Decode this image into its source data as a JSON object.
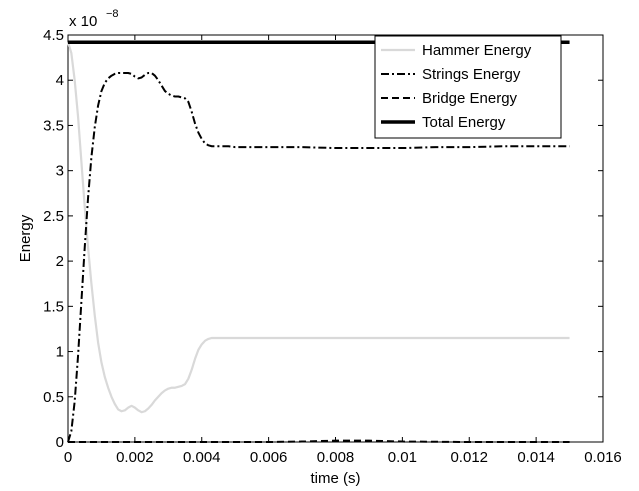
{
  "chart_data": {
    "type": "line",
    "xlabel": "time (s)",
    "ylabel": "Energy",
    "y_exponent_label": {
      "base": "x 10",
      "exp": "−8"
    },
    "xlim": [
      0,
      0.016
    ],
    "ylim": [
      0,
      4.5
    ],
    "x_ticks": [
      0,
      0.002,
      0.004,
      0.006,
      0.008,
      0.01,
      0.012,
      0.014,
      0.016
    ],
    "x_tick_labels": [
      "0",
      "0.002",
      "0.004",
      "0.006",
      "0.008",
      "0.01",
      "0.012",
      "0.014",
      "0.016"
    ],
    "y_ticks": [
      0,
      0.5,
      1,
      1.5,
      2,
      2.5,
      3,
      3.5,
      4,
      4.5
    ],
    "y_tick_labels": [
      "0",
      "0.5",
      "1",
      "1.5",
      "2",
      "2.5",
      "3",
      "3.5",
      "4",
      "4.5"
    ],
    "legend_position": "top-right",
    "series": [
      {
        "name": "Hammer Energy",
        "color": "#d9d9d9",
        "dash": "solid",
        "width": 2.2,
        "x": [
          0,
          0.0001,
          0.0002,
          0.0003,
          0.0004,
          0.0005,
          0.0006,
          0.0007,
          0.0008,
          0.0009,
          0.001,
          0.0011,
          0.0012,
          0.0013,
          0.0014,
          0.0015,
          0.0016,
          0.0017,
          0.0018,
          0.0019,
          0.002,
          0.0021,
          0.0022,
          0.0023,
          0.0024,
          0.0025,
          0.0026,
          0.0027,
          0.0028,
          0.0029,
          0.003,
          0.0031,
          0.0032,
          0.0033,
          0.0034,
          0.0035,
          0.0036,
          0.0037,
          0.0038,
          0.0039,
          0.004,
          0.0041,
          0.0042,
          0.0043,
          0.0044,
          0.0045,
          0.0046,
          0.0047,
          0.0048,
          0.005,
          0.006,
          0.008,
          0.01,
          0.012,
          0.014,
          0.015
        ],
        "values": [
          4.42,
          4.3,
          4.0,
          3.6,
          3.1,
          2.6,
          2.15,
          1.75,
          1.4,
          1.1,
          0.88,
          0.72,
          0.6,
          0.5,
          0.42,
          0.36,
          0.34,
          0.35,
          0.38,
          0.4,
          0.38,
          0.35,
          0.33,
          0.34,
          0.37,
          0.41,
          0.46,
          0.5,
          0.54,
          0.57,
          0.59,
          0.6,
          0.6,
          0.61,
          0.62,
          0.64,
          0.7,
          0.8,
          0.92,
          1.02,
          1.08,
          1.12,
          1.14,
          1.15,
          1.15,
          1.15,
          1.15,
          1.15,
          1.15,
          1.15,
          1.15,
          1.15,
          1.15,
          1.15,
          1.15,
          1.15
        ]
      },
      {
        "name": "Strings Energy",
        "color": "#000000",
        "dash": "8 3 2 3",
        "width": 2,
        "x": [
          0,
          0.0001,
          0.0002,
          0.0003,
          0.0004,
          0.0005,
          0.0006,
          0.0007,
          0.0008,
          0.0009,
          0.001,
          0.0011,
          0.0012,
          0.0013,
          0.0014,
          0.0015,
          0.0016,
          0.0017,
          0.0018,
          0.0019,
          0.002,
          0.0021,
          0.0022,
          0.0023,
          0.0024,
          0.0025,
          0.0026,
          0.0027,
          0.0028,
          0.0029,
          0.003,
          0.0031,
          0.0032,
          0.0033,
          0.0034,
          0.0035,
          0.0036,
          0.0037,
          0.0038,
          0.0039,
          0.004,
          0.0041,
          0.0042,
          0.0043,
          0.0044,
          0.0045,
          0.0046,
          0.0047,
          0.0048,
          0.005,
          0.006,
          0.007,
          0.008,
          0.009,
          0.01,
          0.011,
          0.012,
          0.013,
          0.014,
          0.015
        ],
        "values": [
          0.0,
          0.12,
          0.45,
          0.95,
          1.55,
          2.15,
          2.7,
          3.15,
          3.48,
          3.72,
          3.88,
          3.97,
          4.02,
          4.05,
          4.07,
          4.08,
          4.08,
          4.08,
          4.08,
          4.07,
          4.04,
          4.02,
          4.03,
          4.06,
          4.08,
          4.08,
          4.05,
          4.0,
          3.94,
          3.88,
          3.85,
          3.83,
          3.82,
          3.82,
          3.81,
          3.8,
          3.76,
          3.65,
          3.52,
          3.42,
          3.35,
          3.3,
          3.28,
          3.27,
          3.27,
          3.27,
          3.27,
          3.27,
          3.27,
          3.26,
          3.26,
          3.26,
          3.25,
          3.25,
          3.25,
          3.26,
          3.26,
          3.27,
          3.27,
          3.27
        ]
      },
      {
        "name": "Bridge Energy",
        "color": "#000000",
        "dash": "7 4",
        "width": 2,
        "x": [
          0,
          0.002,
          0.004,
          0.006,
          0.007,
          0.0075,
          0.008,
          0.009,
          0.0095,
          0.01,
          0.012,
          0.014,
          0.015
        ],
        "values": [
          0.0,
          0.0,
          0.0,
          0.0,
          0.005,
          0.01,
          0.015,
          0.015,
          0.01,
          0.005,
          0.0,
          0.0,
          0.0
        ]
      },
      {
        "name": "Total Energy",
        "color": "#000000",
        "dash": "solid",
        "width": 3.5,
        "x": [
          0,
          0.015
        ],
        "values": [
          4.42,
          4.42
        ]
      }
    ]
  }
}
